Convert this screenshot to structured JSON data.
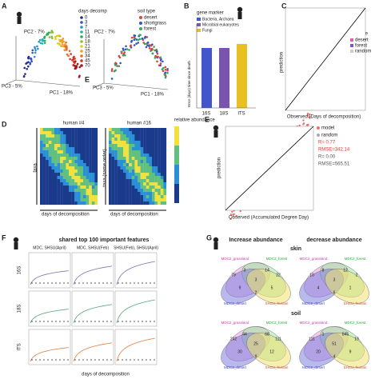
{
  "panel_a": {
    "label": "A",
    "legend_title": "days decomp",
    "days": [
      "0",
      "3",
      "7",
      "11",
      "14",
      "18",
      "21",
      "25",
      "34",
      "45",
      "70"
    ],
    "soil_title": "soil type",
    "soils": [
      "desert",
      "shortgrass",
      "forest"
    ],
    "pc2": "PC2 - 7%",
    "pc3": "PC3 - 5%",
    "pc1": "PC1 - 18%",
    "sub": "E"
  },
  "panel_b": {
    "label": "B",
    "legend_title": "gene marker",
    "markers": [
      "Bacteria, Archaea",
      "Microbial eukaryotes",
      "Fungi"
    ],
    "ylabel": "Error (days) time since death",
    "categories": [
      "16S",
      "18S",
      "ITS"
    ]
  },
  "panel_c": {
    "label": "C",
    "ylabel": "prediction",
    "xlabel": "Observed (Days of decomposition)",
    "legend_title": "soil type",
    "soils": [
      "desert",
      "forest",
      "random"
    ]
  },
  "panel_d": {
    "label": "D",
    "h1": "human #4",
    "h2": "human #16",
    "cbar": "relative abundance",
    "ylabel1": "taxa",
    "ylabel2": "taxa (same order)",
    "xlabel": "days of decomposition"
  },
  "panel_e": {
    "label": "E",
    "model": "model",
    "random": "random",
    "r1": "R= 0.77",
    "rmse1": "RMSE=342.14",
    "r2": "R= 0.00",
    "rmse2": "RMSE=565.51",
    "ylabel": "prediction",
    "xlabel": "Observed (Accumulated Degree Day)"
  },
  "panel_f": {
    "label": "F",
    "title": "shared top 100 important features",
    "cols": [
      "MDC, SHSU(April)",
      "MDC, SHSU(Feb)",
      "SHSU(Feb), SHSU(April)"
    ],
    "rows": [
      "16S",
      "18S",
      "ITS"
    ],
    "xlabel": "days of decomposition"
  },
  "panel_g": {
    "label": "G",
    "inc": "Increase abundance",
    "dec": "decrease abundance",
    "skin": "skin",
    "soil": "soil",
    "sets": [
      "MDC2_grassland",
      "MDC2_forest",
      "MDC2_desert",
      "SHSU_human"
    ],
    "venns": [
      [
        "79",
        "22",
        "3",
        "14",
        "3",
        "9",
        "5",
        "2"
      ],
      [
        "10",
        "2",
        "8",
        "12",
        "3",
        "4",
        "1",
        "6"
      ],
      [
        "242",
        "111",
        "44",
        "68",
        "25",
        "30",
        "12",
        "9"
      ],
      [
        "111",
        "19",
        "1",
        "845",
        "51",
        "20",
        "9",
        "4"
      ]
    ]
  }
}
